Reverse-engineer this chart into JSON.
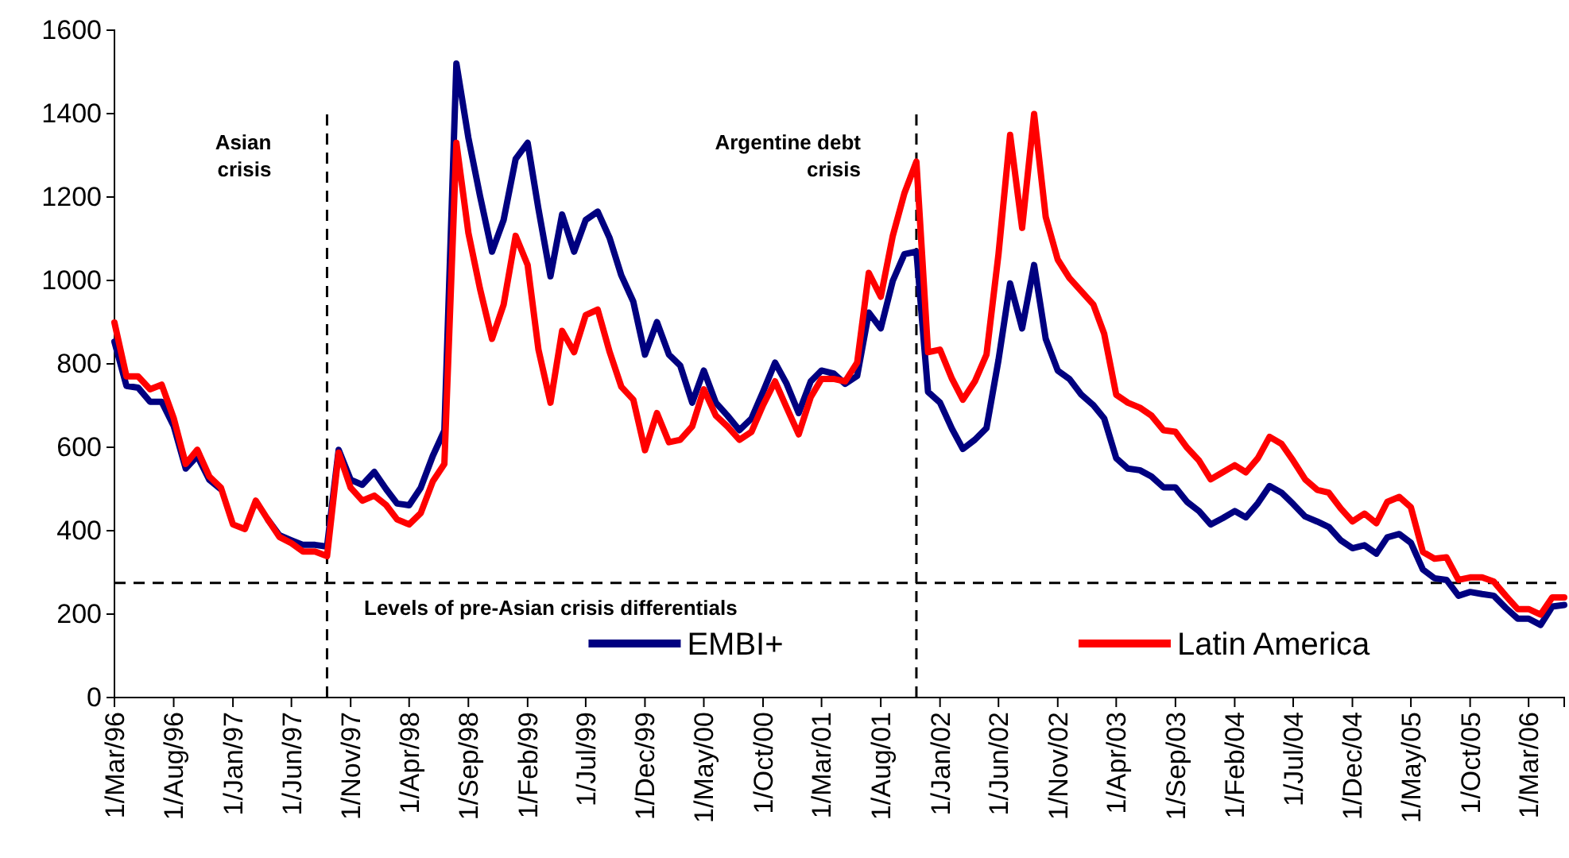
{
  "chart_data": {
    "type": "line",
    "x": [
      "1996-03",
      "1996-04",
      "1996-05",
      "1996-06",
      "1996-07",
      "1996-08",
      "1996-09",
      "1996-10",
      "1996-11",
      "1996-12",
      "1997-01",
      "1997-02",
      "1997-03",
      "1997-04",
      "1997-05",
      "1997-06",
      "1997-07",
      "1997-08",
      "1997-09",
      "1997-10",
      "1997-11",
      "1997-12",
      "1998-01",
      "1998-02",
      "1998-03",
      "1998-04",
      "1998-05",
      "1998-06",
      "1998-07",
      "1998-08",
      "1998-09",
      "1998-10",
      "1998-11",
      "1998-12",
      "1999-01",
      "1999-02",
      "1999-03",
      "1999-04",
      "1999-05",
      "1999-06",
      "1999-07",
      "1999-08",
      "1999-09",
      "1999-10",
      "1999-11",
      "1999-12",
      "2000-01",
      "2000-02",
      "2000-03",
      "2000-04",
      "2000-05",
      "2000-06",
      "2000-07",
      "2000-08",
      "2000-09",
      "2000-10",
      "2000-11",
      "2000-12",
      "2001-01",
      "2001-02",
      "2001-03",
      "2001-04",
      "2001-05",
      "2001-06",
      "2001-07",
      "2001-08",
      "2001-09",
      "2001-10",
      "2001-11",
      "2001-12",
      "2002-01",
      "2002-02",
      "2002-03",
      "2002-04",
      "2002-05",
      "2002-06",
      "2002-07",
      "2002-08",
      "2002-09",
      "2002-10",
      "2002-11",
      "2002-12",
      "2003-01",
      "2003-02",
      "2003-03",
      "2003-04",
      "2003-05",
      "2003-06",
      "2003-07",
      "2003-08",
      "2003-09",
      "2003-10",
      "2003-11",
      "2003-12",
      "2004-01",
      "2004-02",
      "2004-03",
      "2004-04",
      "2004-05",
      "2004-06",
      "2004-07",
      "2004-08",
      "2004-09",
      "2004-10",
      "2004-11",
      "2004-12",
      "2005-01",
      "2005-02",
      "2005-03",
      "2005-04",
      "2005-05",
      "2005-06",
      "2005-07",
      "2005-08",
      "2005-09",
      "2005-10",
      "2005-11",
      "2005-12",
      "2006-01",
      "2006-02",
      "2006-03",
      "2006-04",
      "2006-05",
      "2006-06"
    ],
    "series": [
      {
        "name": "EMBI+",
        "color": "#000080",
        "values": [
          853,
          747,
          743,
          709,
          709,
          651,
          549,
          579,
          522,
          499,
          null,
          null,
          null,
          427,
          389,
          377,
          366,
          366,
          362,
          594,
          522,
          510,
          541,
          499,
          465,
          461,
          503,
          579,
          640,
          1520,
          1342,
          1203,
          1069,
          1145,
          1291,
          1330,
          1171,
          1010,
          1158,
          1069,
          1145,
          1165,
          1101,
          1012,
          949,
          822,
          900,
          822,
          796,
          707,
          784,
          707,
          676,
          641,
          669,
          733,
          803,
          752,
          682,
          758,
          784,
          777,
          752,
          771,
          923,
          885,
          999,
          1063,
          1069,
          733,
          707,
          644,
          596,
          618,
          646,
          809,
          993,
          885,
          1037,
          860,
          784,
          764,
          726,
          701,
          669,
          574,
          549,
          545,
          530,
          504,
          504,
          469,
          447,
          415,
          430,
          447,
          432,
          466,
          507,
          491,
          464,
          434,
          422,
          409,
          377,
          358,
          365,
          345,
          384,
          392,
          371,
          307,
          286,
          282,
          244,
          253,
          248,
          244,
          215,
          189,
          189,
          174,
          218,
          222
        ]
      },
      {
        "name": "Latin America",
        "color": "#ff0000",
        "values": [
          899,
          770,
          770,
          739,
          750,
          670,
          560,
          594,
          530,
          503,
          415,
          404,
          472,
          427,
          385,
          370,
          350,
          350,
          339,
          587,
          503,
          472,
          484,
          461,
          427,
          415,
          442,
          518,
          560,
          1330,
          1114,
          980,
          860,
          942,
          1107,
          1037,
          834,
          707,
          879,
          828,
          917,
          930,
          828,
          745,
          714,
          593,
          682,
          612,
          618,
          650,
          739,
          676,
          650,
          618,
          637,
          701,
          758,
          695,
          631,
          720,
          764,
          764,
          758,
          803,
          1018,
          961,
          1107,
          1209,
          1285,
          828,
          834,
          764,
          714,
          758,
          822,
          1063,
          1349,
          1126,
          1399,
          1152,
          1050,
          1006,
          974,
          942,
          872,
          726,
          707,
          695,
          676,
          641,
          637,
          599,
          568,
          523,
          540,
          557,
          540,
          574,
          625,
          608,
          568,
          523,
          498,
          491,
          453,
          422,
          441,
          418,
          469,
          481,
          456,
          349,
          333,
          336,
          282,
          288,
          288,
          278,
          244,
          212,
          212,
          199,
          240,
          240
        ]
      }
    ],
    "xlim": [
      "1996-03",
      "2006-06"
    ],
    "xticks": [
      {
        "value": "1996-03",
        "label": "1/Mar/96"
      },
      {
        "value": "1996-08",
        "label": "1/Aug/96"
      },
      {
        "value": "1997-01",
        "label": "1/Jan/97"
      },
      {
        "value": "1997-06",
        "label": "1/Jun/97"
      },
      {
        "value": "1997-11",
        "label": "1/Nov/97"
      },
      {
        "value": "1998-04",
        "label": "1/Apr/98"
      },
      {
        "value": "1998-09",
        "label": "1/Sep/98"
      },
      {
        "value": "1999-02",
        "label": "1/Feb/99"
      },
      {
        "value": "1999-07",
        "label": "1/Jul/99"
      },
      {
        "value": "1999-12",
        "label": "1/Dec/99"
      },
      {
        "value": "2000-05",
        "label": "1/May/00"
      },
      {
        "value": "2000-10",
        "label": "1/Oct/00"
      },
      {
        "value": "2001-03",
        "label": "1/Mar/01"
      },
      {
        "value": "2001-08",
        "label": "1/Aug/01"
      },
      {
        "value": "2002-01",
        "label": "1/Jan/02"
      },
      {
        "value": "2002-06",
        "label": "1/Jun/02"
      },
      {
        "value": "2002-11",
        "label": "1/Nov/02"
      },
      {
        "value": "2003-04",
        "label": "1/Apr/03"
      },
      {
        "value": "2003-09",
        "label": "1/Sep/03"
      },
      {
        "value": "2004-02",
        "label": "1/Feb/04"
      },
      {
        "value": "2004-07",
        "label": "1/Jul/04"
      },
      {
        "value": "2004-12",
        "label": "1/Dec/04"
      },
      {
        "value": "2005-05",
        "label": "1/May/05"
      },
      {
        "value": "2005-10",
        "label": "1/Oct/05"
      },
      {
        "value": "2006-03",
        "label": "1/Mar/06"
      }
    ],
    "ylim": [
      0,
      1600
    ],
    "yticks": [
      0,
      200,
      400,
      600,
      800,
      1000,
      1200,
      1400,
      1600
    ],
    "ref_lines": [
      {
        "axis": "x",
        "value": "1997-09",
        "label": "Asian crisis",
        "color": "#000000",
        "line_style": "dashed"
      },
      {
        "axis": "x",
        "value": "2001-11",
        "label": "Argentine debt crisis",
        "color": "#000000",
        "line_style": "dashed"
      },
      {
        "axis": "y",
        "value": 275,
        "label": "Levels of pre-Asian crisis differentials",
        "color": "#000000",
        "line_style": "dashed"
      }
    ],
    "grid": false,
    "legend": "bottom",
    "marker": "none",
    "line_style": "solid"
  }
}
